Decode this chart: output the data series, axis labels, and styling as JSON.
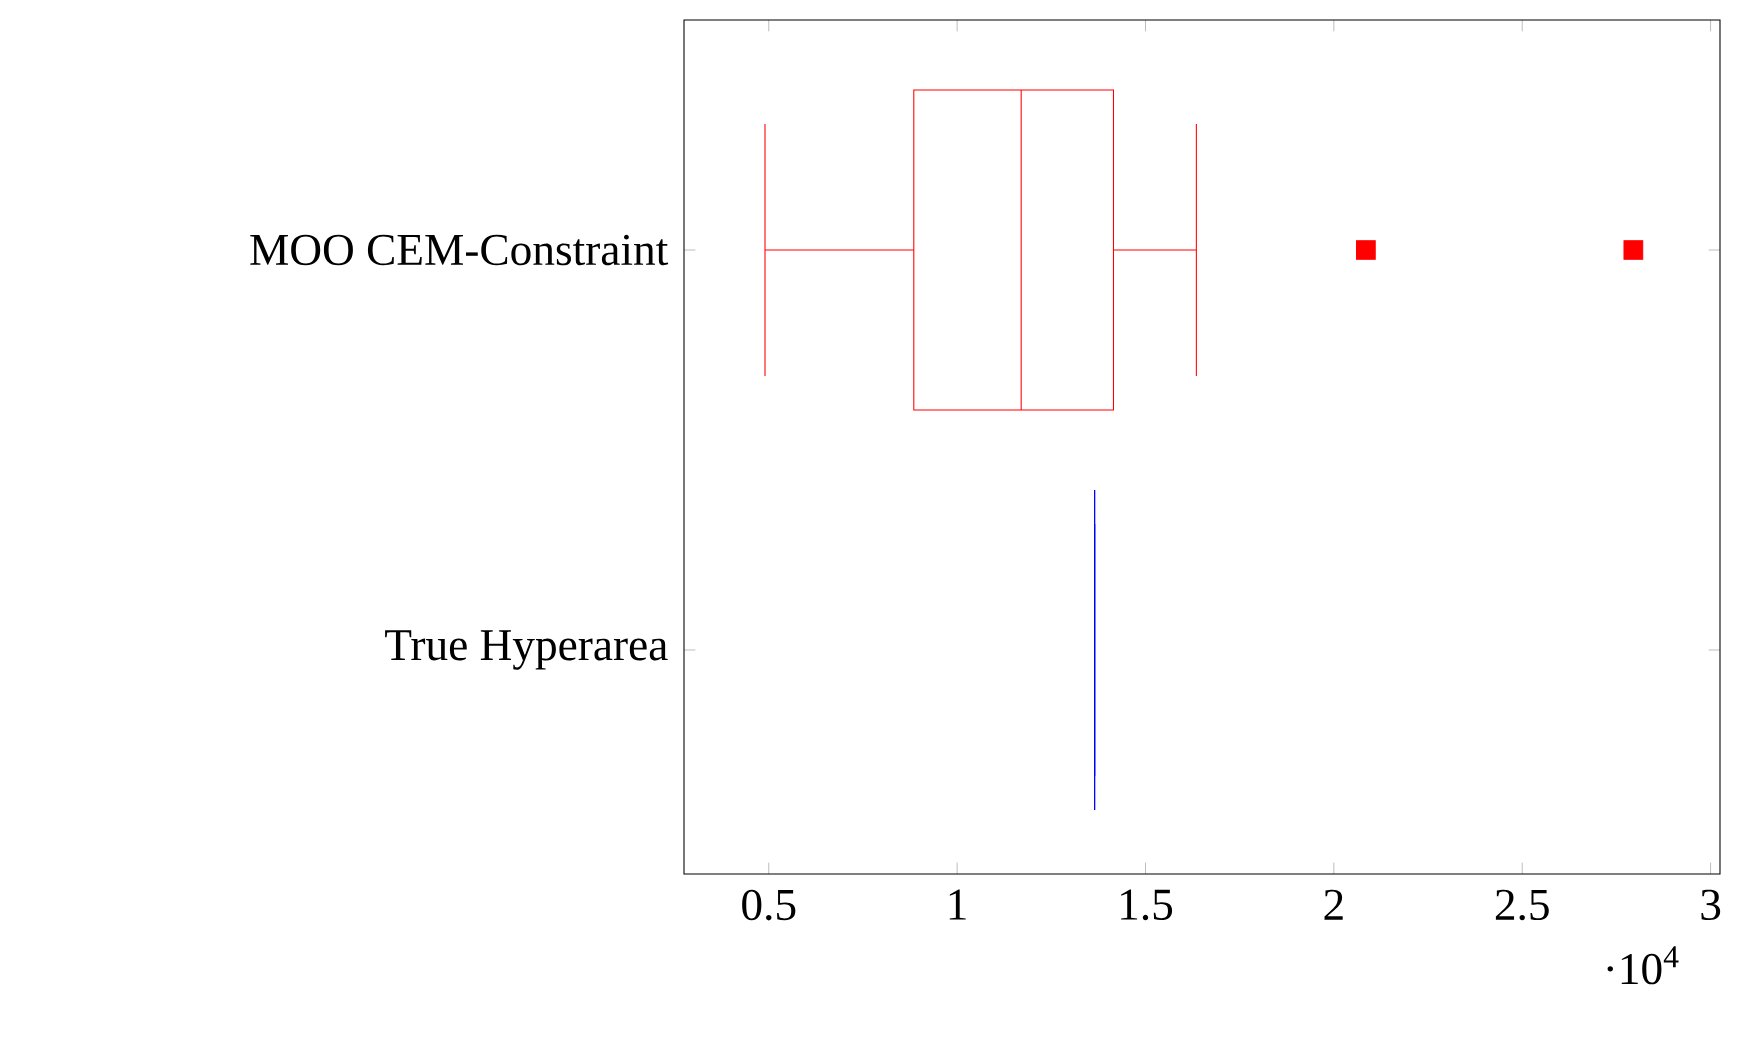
{
  "chart_data": {
    "type": "box",
    "orientation": "horizontal",
    "categories": [
      "MOO CEM-Constraint",
      "True Hyperarea"
    ],
    "boxes": [
      {
        "low": 0.49,
        "q1": 0.885,
        "median": 1.17,
        "q3": 1.415,
        "high": 1.635,
        "outliers": [
          2.085,
          2.795
        ]
      },
      {
        "low": 1.365,
        "q1": 1.365,
        "median": 1.365,
        "q3": 1.365,
        "high": 1.365
      }
    ],
    "colors": [
      "#ff0000",
      "#0000ff"
    ],
    "marker": "square",
    "xlim": [
      0.275,
      3.025
    ],
    "xticks": [
      0.5,
      1,
      1.5,
      2,
      2.5,
      3
    ],
    "annotations": [
      "·10$^{4}$"
    ]
  }
}
